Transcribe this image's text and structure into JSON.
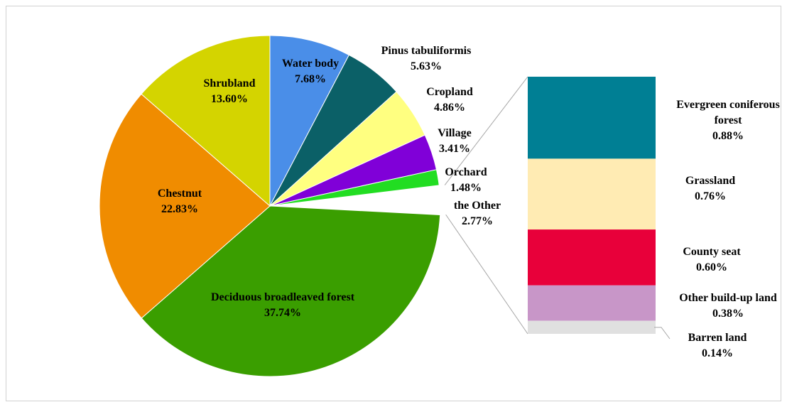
{
  "chart_data": {
    "type": "pie-of-bar",
    "categories": [
      "Water body",
      "Pinus tabuliformis",
      "Cropland",
      "Village",
      "Orchard",
      "the Other",
      "Deciduous broadleaved forest",
      "Chestnut",
      "Shrubland"
    ],
    "values": [
      7.68,
      5.63,
      4.86,
      3.41,
      1.48,
      2.77,
      37.74,
      22.83,
      13.6
    ],
    "value_labels": [
      "7.68%",
      "5.63%",
      "4.86%",
      "3.41%",
      "1.48%",
      "2.77%",
      "37.74%",
      "22.83%",
      "13.60%"
    ],
    "colors": [
      "#4a8ee8",
      "#0b6067",
      "#ffff80",
      "#8000d8",
      "#22dd22",
      "#ffffff",
      "#3a9e00",
      "#f08c00",
      "#d4d400"
    ],
    "breakdown": {
      "categories": [
        "Evergreen coniferous forest",
        "Grassland",
        "County seat",
        "Other build-up land",
        "Barren land"
      ],
      "values": [
        0.88,
        0.76,
        0.6,
        0.38,
        0.14
      ],
      "value_labels": [
        "0.88%",
        "0.76%",
        "0.60%",
        "0.38%",
        "0.14%"
      ],
      "colors": [
        "#007f94",
        "#ffebb3",
        "#e8003a",
        "#c896c8",
        "#e0e0e0"
      ]
    }
  }
}
